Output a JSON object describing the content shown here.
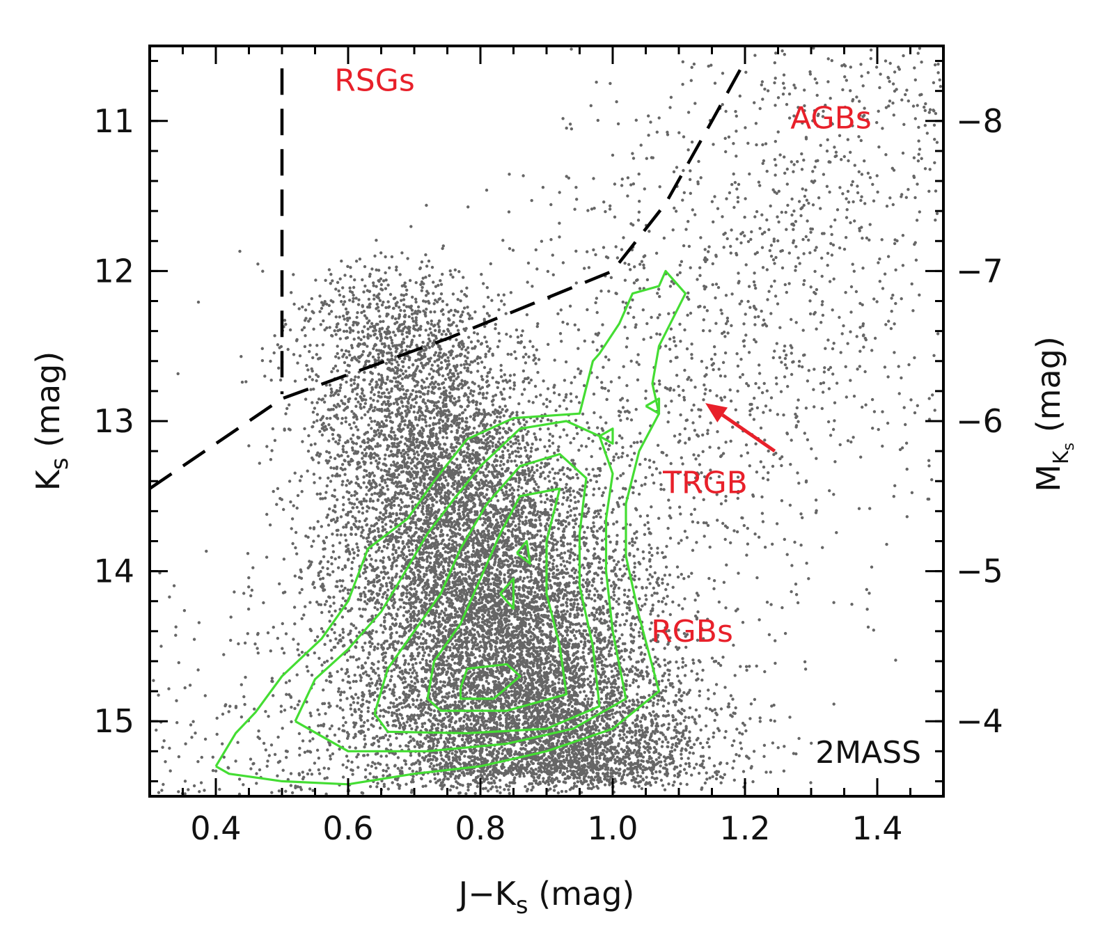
{
  "chart_data": {
    "type": "scatter",
    "title": "",
    "xlabel": {
      "main": "J−K",
      "sub": "s",
      "unit": " (mag)"
    },
    "ylabel_left": {
      "main": "K",
      "sub": "s",
      "unit": " (mag)"
    },
    "ylabel_right": {
      "main": "M",
      "sub": "K",
      "subsub": "s",
      "unit": " (mag)"
    },
    "xlim": [
      0.3,
      1.5
    ],
    "ylim": [
      15.5,
      10.5
    ],
    "y_inverted": true,
    "right_axis_offset": -19.0,
    "x_ticks": [
      "0.4",
      "0.6",
      "0.8",
      "1.0",
      "1.2",
      "1.4"
    ],
    "y_ticks_left": [
      "11",
      "12",
      "13",
      "14",
      "15"
    ],
    "y_ticks_right": [
      "−8",
      "−7",
      "−6",
      "−5",
      "−4"
    ],
    "colors": {
      "points": "#666666",
      "contours": "#44dd33",
      "boundaries": "#000000",
      "annotations": "#e8202a"
    },
    "boundaries": [
      {
        "style": "dashed",
        "points": [
          [
            0.5,
            10.65
          ],
          [
            0.5,
            12.82
          ]
        ]
      },
      {
        "style": "dashed",
        "points": [
          [
            0.3,
            13.45
          ],
          [
            0.5,
            12.85
          ],
          [
            0.75,
            12.45
          ],
          [
            1.0,
            12.0
          ],
          [
            1.08,
            11.55
          ],
          [
            1.15,
            11.0
          ],
          [
            1.2,
            10.6
          ]
        ]
      }
    ],
    "annotations": [
      {
        "text": "RSGs",
        "x": 0.64,
        "y": 10.8
      },
      {
        "text": "AGBs",
        "x": 1.33,
        "y": 11.05
      },
      {
        "text": "TRGB",
        "x": 1.14,
        "y": 13.48
      },
      {
        "text": "RGBs",
        "x": 1.12,
        "y": 14.47
      }
    ],
    "arrow": {
      "from": [
        1.245,
        13.2
      ],
      "to": [
        1.14,
        12.88
      ]
    },
    "corner_label": "2MASS",
    "density": {
      "center_color": 0.84,
      "slope_color_per_mag": 0.08,
      "ref_mag": 14.5,
      "color_sigma": 0.1,
      "mag_range": [
        11.9,
        15.4
      ],
      "n_core": 14000,
      "n_background": 3200
    },
    "contours": [
      {
        "level": 1,
        "points": [
          [
            0.4,
            15.3
          ],
          [
            0.43,
            15.08
          ],
          [
            0.46,
            14.94
          ],
          [
            0.5,
            14.7
          ],
          [
            0.56,
            14.45
          ],
          [
            0.6,
            14.2
          ],
          [
            0.63,
            13.85
          ],
          [
            0.69,
            13.65
          ],
          [
            0.73,
            13.4
          ],
          [
            0.78,
            13.12
          ],
          [
            0.85,
            12.98
          ],
          [
            0.95,
            12.95
          ],
          [
            0.97,
            12.6
          ],
          [
            0.98,
            12.55
          ],
          [
            1.01,
            12.35
          ],
          [
            1.03,
            12.15
          ],
          [
            1.07,
            12.1
          ],
          [
            1.08,
            12.0
          ],
          [
            1.11,
            12.15
          ],
          [
            1.07,
            12.5
          ],
          [
            1.06,
            12.75
          ],
          [
            1.07,
            12.95
          ],
          [
            1.04,
            13.2
          ],
          [
            1.02,
            13.55
          ],
          [
            1.02,
            13.9
          ],
          [
            1.04,
            14.3
          ],
          [
            1.07,
            14.8
          ],
          [
            1.0,
            15.05
          ],
          [
            0.9,
            15.2
          ],
          [
            0.8,
            15.3
          ],
          [
            0.7,
            15.35
          ],
          [
            0.6,
            15.42
          ],
          [
            0.5,
            15.4
          ],
          [
            0.42,
            15.35
          ],
          [
            0.4,
            15.3
          ]
        ]
      },
      {
        "level": 2,
        "points": [
          [
            0.52,
            15.0
          ],
          [
            0.55,
            14.72
          ],
          [
            0.6,
            14.52
          ],
          [
            0.65,
            14.27
          ],
          [
            0.68,
            14.05
          ],
          [
            0.72,
            13.75
          ],
          [
            0.76,
            13.52
          ],
          [
            0.8,
            13.3
          ],
          [
            0.86,
            13.05
          ],
          [
            0.93,
            13.0
          ],
          [
            0.98,
            13.1
          ],
          [
            1.0,
            13.35
          ],
          [
            0.99,
            13.65
          ],
          [
            0.99,
            14.0
          ],
          [
            1.0,
            14.4
          ],
          [
            1.02,
            14.85
          ],
          [
            0.94,
            15.05
          ],
          [
            0.84,
            15.15
          ],
          [
            0.72,
            15.2
          ],
          [
            0.6,
            15.2
          ],
          [
            0.52,
            15.0
          ]
        ]
      },
      {
        "level": 3,
        "points": [
          [
            0.64,
            14.95
          ],
          [
            0.66,
            14.65
          ],
          [
            0.7,
            14.4
          ],
          [
            0.74,
            14.15
          ],
          [
            0.77,
            13.85
          ],
          [
            0.81,
            13.55
          ],
          [
            0.86,
            13.3
          ],
          [
            0.92,
            13.22
          ],
          [
            0.96,
            13.38
          ],
          [
            0.95,
            13.75
          ],
          [
            0.95,
            14.1
          ],
          [
            0.97,
            14.5
          ],
          [
            0.98,
            14.9
          ],
          [
            0.9,
            15.05
          ],
          [
            0.78,
            15.08
          ],
          [
            0.66,
            15.07
          ],
          [
            0.64,
            14.95
          ]
        ]
      },
      {
        "level": 4,
        "points": [
          [
            0.72,
            14.85
          ],
          [
            0.73,
            14.6
          ],
          [
            0.77,
            14.35
          ],
          [
            0.8,
            14.05
          ],
          [
            0.83,
            13.75
          ],
          [
            0.86,
            13.5
          ],
          [
            0.92,
            13.45
          ],
          [
            0.9,
            13.8
          ],
          [
            0.9,
            14.15
          ],
          [
            0.92,
            14.5
          ],
          [
            0.93,
            14.82
          ],
          [
            0.84,
            14.93
          ],
          [
            0.74,
            14.93
          ],
          [
            0.72,
            14.85
          ]
        ]
      },
      {
        "level": 5,
        "points": [
          [
            0.77,
            14.78
          ],
          [
            0.78,
            14.65
          ],
          [
            0.84,
            14.62
          ],
          [
            0.86,
            14.7
          ],
          [
            0.82,
            14.85
          ],
          [
            0.77,
            14.85
          ],
          [
            0.77,
            14.78
          ]
        ]
      },
      {
        "level": 5,
        "points": [
          [
            0.83,
            14.15
          ],
          [
            0.85,
            14.05
          ],
          [
            0.85,
            14.25
          ],
          [
            0.83,
            14.15
          ]
        ]
      },
      {
        "level": 5,
        "points": [
          [
            0.855,
            13.88
          ],
          [
            0.87,
            13.8
          ],
          [
            0.875,
            13.95
          ],
          [
            0.855,
            13.88
          ]
        ]
      },
      {
        "level": 5,
        "points": [
          [
            0.98,
            13.1
          ],
          [
            1.0,
            13.05
          ],
          [
            1.0,
            13.15
          ],
          [
            0.98,
            13.1
          ]
        ]
      },
      {
        "level": 5,
        "points": [
          [
            1.05,
            12.9
          ],
          [
            1.07,
            12.85
          ],
          [
            1.07,
            12.95
          ],
          [
            1.05,
            12.9
          ]
        ]
      }
    ]
  }
}
